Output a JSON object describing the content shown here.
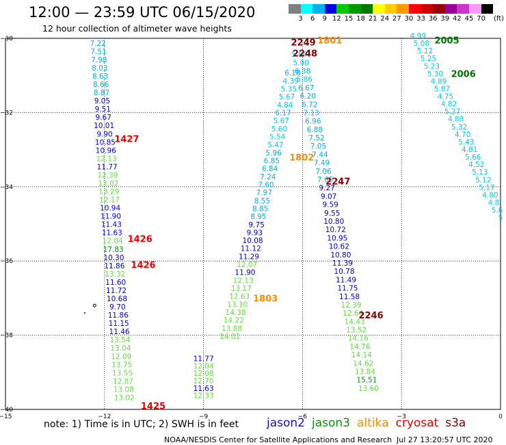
{
  "header": {
    "title": "12:00 — 23:59 UTC 06/15/2020",
    "subtitle": "12 hour collection of altimeter wave heights"
  },
  "colorbar": {
    "labels": [
      "3",
      "6",
      "9",
      "12",
      "15",
      "18",
      "21",
      "24",
      "27",
      "30",
      "33",
      "36",
      "39",
      "42",
      "45",
      "70"
    ],
    "colors": [
      "#7f7f7f",
      "#00ffff",
      "#00b0f0",
      "#0000e0",
      "#00cc00",
      "#009900",
      "#007700",
      "#ffff00",
      "#ffcc00",
      "#ff9900",
      "#ff0000",
      "#cc0000",
      "#990000",
      "#990099",
      "#cc33cc",
      "#ff99ff",
      "#000000"
    ],
    "unit": "(ft)"
  },
  "footer": {
    "note": "note:  1) Time is in UTC;  2) SWH is in feet",
    "credit": "NOAA/NESDIS Center for Satellite Applications and Research",
    "timestamp": "Jul 27 13:20:57 UTC 2020",
    "legend": [
      {
        "name": "jason2",
        "color": "#1010d0"
      },
      {
        "name": "jason3",
        "color": "#109010"
      },
      {
        "name": "altika",
        "color": "#ff8c00"
      },
      {
        "name": "cryosat",
        "color": "#ee0000"
      },
      {
        "name": "s3a",
        "color": "#8b0000"
      }
    ]
  },
  "chart_data": {
    "type": "scatter",
    "xlim": [
      -15,
      0
    ],
    "ylim": [
      -40,
      -30
    ],
    "x_ticks": [
      -15,
      -12,
      -9,
      -6,
      -3,
      0
    ],
    "y_ticks": [
      -30,
      -32,
      -34,
      -36,
      -38,
      -40
    ],
    "x_tick_labels": [
      "−15",
      "−12",
      "−9",
      "−6",
      "−3",
      "0"
    ],
    "y_tick_labels": [
      "−30",
      "−32",
      "−34",
      "−36",
      "−38",
      "−40"
    ],
    "grid": true,
    "tracks": [
      {
        "x0": -12.2,
        "y0": -30.2,
        "x1": -11.4,
        "y1": -39.75,
        "points": [
          {
            "v": "7.22",
            "c": "#00b0f0"
          },
          {
            "v": "7.51",
            "c": "#00b0f0"
          },
          {
            "v": "7.98",
            "c": "#00b0f0"
          },
          {
            "v": "8.03",
            "c": "#00b0f0"
          },
          {
            "v": "8.63",
            "c": "#00b0f0"
          },
          {
            "v": "8.66",
            "c": "#00b0f0"
          },
          {
            "v": "8.87",
            "c": "#00b0f0"
          },
          {
            "v": "9.05",
            "c": "#0000e0"
          },
          {
            "v": "9.51",
            "c": "#0000e0"
          },
          {
            "v": "9.67",
            "c": "#0000e0"
          },
          {
            "v": "10.01",
            "c": "#0000e0"
          },
          {
            "v": "9.90",
            "c": "#0000e0"
          },
          {
            "v": "10.85",
            "c": "#0000e0"
          },
          {
            "v": "10.96",
            "c": "#0000e0"
          },
          {
            "v": "12.13",
            "c": "#66dd44"
          },
          {
            "v": "11.77",
            "c": "#0000e0"
          },
          {
            "v": "12.39",
            "c": "#66dd44"
          },
          {
            "v": "13.02",
            "c": "#66dd44"
          },
          {
            "v": "13.29",
            "c": "#66dd44"
          },
          {
            "v": "12.17",
            "c": "#66dd44"
          },
          {
            "v": "10.94",
            "c": "#0000e0"
          },
          {
            "v": "11.90",
            "c": "#0000e0"
          },
          {
            "v": "11.43",
            "c": "#0000e0"
          },
          {
            "v": "11.63",
            "c": "#0000e0"
          },
          {
            "v": "12.04",
            "c": "#66dd44"
          },
          {
            "v": "17.83",
            "c": "#009900"
          },
          {
            "v": "10.30",
            "c": "#0000e0"
          },
          {
            "v": "11.86",
            "c": "#0000e0"
          },
          {
            "v": "13.32",
            "c": "#66dd44"
          },
          {
            "v": "11.60",
            "c": "#0000e0"
          },
          {
            "v": "11.72",
            "c": "#0000e0"
          },
          {
            "v": "10.68",
            "c": "#0000e0"
          },
          {
            "v": "9.70",
            "c": "#0000e0"
          },
          {
            "v": "11.86",
            "c": "#0000e0"
          },
          {
            "v": "11.15",
            "c": "#0000e0"
          },
          {
            "v": "11.46",
            "c": "#0000e0"
          },
          {
            "v": "13.54",
            "c": "#66dd44"
          },
          {
            "v": "13.04",
            "c": "#66dd44"
          },
          {
            "v": "12.09",
            "c": "#66dd44"
          },
          {
            "v": "13.75",
            "c": "#66dd44"
          },
          {
            "v": "13.55",
            "c": "#66dd44"
          },
          {
            "v": "12.87",
            "c": "#66dd44"
          },
          {
            "v": "13.08",
            "c": "#66dd44"
          },
          {
            "v": "13.02",
            "c": "#66dd44"
          }
        ]
      },
      {
        "x0": -6.3,
        "y0": -31.0,
        "x1": -8.2,
        "y1": -38.1,
        "points": [
          {
            "v": "6.18",
            "c": "#00b0f0"
          },
          {
            "v": "4.39",
            "c": "#00ccee"
          },
          {
            "v": "5.35",
            "c": "#00ccee"
          },
          {
            "v": "5.67",
            "c": "#00ccee"
          },
          {
            "v": "4.84",
            "c": "#00ccee"
          },
          {
            "v": "6.17",
            "c": "#00b0f0"
          },
          {
            "v": "5.67",
            "c": "#00ccee"
          },
          {
            "v": "5.60",
            "c": "#00ccee"
          },
          {
            "v": "5.54",
            "c": "#00ccee"
          },
          {
            "v": "5.47",
            "c": "#00ccee"
          },
          {
            "v": "5.96",
            "c": "#00b0f0"
          },
          {
            "v": "6.85",
            "c": "#00b0f0"
          },
          {
            "v": "6.84",
            "c": "#00b0f0"
          },
          {
            "v": "7.24",
            "c": "#00b0f0"
          },
          {
            "v": "7.60",
            "c": "#00b0f0"
          },
          {
            "v": "7.97",
            "c": "#00b0f0"
          },
          {
            "v": "8.55",
            "c": "#00b0f0"
          },
          {
            "v": "8.85",
            "c": "#00b0f0"
          },
          {
            "v": "8.95",
            "c": "#00b0f0"
          },
          {
            "v": "9.75",
            "c": "#0000e0"
          },
          {
            "v": "9.93",
            "c": "#0000e0"
          },
          {
            "v": "10.08",
            "c": "#0000e0"
          },
          {
            "v": "11.12",
            "c": "#0000e0"
          },
          {
            "v": "11.29",
            "c": "#0000e0"
          },
          {
            "v": "12.07",
            "c": "#66dd44"
          },
          {
            "v": "11.90",
            "c": "#0000e0"
          },
          {
            "v": "12.13",
            "c": "#66dd44"
          },
          {
            "v": "13.17",
            "c": "#66dd44"
          },
          {
            "v": "12.63",
            "c": "#66dd44"
          },
          {
            "v": "13.10",
            "c": "#66dd44"
          },
          {
            "v": "14.38",
            "c": "#66dd44"
          },
          {
            "v": "14.22",
            "c": "#66dd44"
          },
          {
            "v": "13.88",
            "c": "#66dd44"
          },
          {
            "v": "14.01",
            "c": "#66dd44"
          }
        ]
      },
      {
        "x0": -6.1,
        "y0": -30.5,
        "x1": -4.0,
        "y1": -39.5,
        "points": [
          {
            "v": "5.84",
            "c": "#00ccee"
          },
          {
            "v": "5.90",
            "c": "#00ccee"
          },
          {
            "v": "6.38",
            "c": "#00b0f0"
          },
          {
            "v": "5.86",
            "c": "#00ccee"
          },
          {
            "v": "6.67",
            "c": "#00b0f0"
          },
          {
            "v": "6.20",
            "c": "#00b0f0"
          },
          {
            "v": "6.72",
            "c": "#00b0f0"
          },
          {
            "v": "7.13",
            "c": "#00b0f0"
          },
          {
            "v": "6.96",
            "c": "#00b0f0"
          },
          {
            "v": "6.88",
            "c": "#00b0f0"
          },
          {
            "v": "7.52",
            "c": "#00b0f0"
          },
          {
            "v": "7.05",
            "c": "#00b0f0"
          },
          {
            "v": "7.44",
            "c": "#00b0f0"
          },
          {
            "v": "7.49",
            "c": "#00b0f0"
          },
          {
            "v": "7.06",
            "c": "#00b0f0"
          },
          {
            "v": "7.65",
            "c": "#00b0f0"
          },
          {
            "v": "9.27",
            "c": "#0000e0"
          },
          {
            "v": "9.07",
            "c": "#0000e0"
          },
          {
            "v": "9.59",
            "c": "#0000e0"
          },
          {
            "v": "9.55",
            "c": "#0000e0"
          },
          {
            "v": "10.80",
            "c": "#0000e0"
          },
          {
            "v": "10.72",
            "c": "#0000e0"
          },
          {
            "v": "10.95",
            "c": "#0000e0"
          },
          {
            "v": "10.62",
            "c": "#0000e0"
          },
          {
            "v": "10.80",
            "c": "#0000e0"
          },
          {
            "v": "11.39",
            "c": "#0000e0"
          },
          {
            "v": "10.78",
            "c": "#0000e0"
          },
          {
            "v": "11.49",
            "c": "#0000e0"
          },
          {
            "v": "11.75",
            "c": "#0000e0"
          },
          {
            "v": "11.58",
            "c": "#0000e0"
          },
          {
            "v": "12.39",
            "c": "#66dd44"
          },
          {
            "v": "12.64",
            "c": "#66dd44"
          },
          {
            "v": "14.43",
            "c": "#66dd44"
          },
          {
            "v": "13.52",
            "c": "#66dd44"
          },
          {
            "v": "14.16",
            "c": "#66dd44"
          },
          {
            "v": "14.76",
            "c": "#66dd44"
          },
          {
            "v": "14.14",
            "c": "#66dd44"
          },
          {
            "v": "14.62",
            "c": "#66dd44"
          },
          {
            "v": "13.84",
            "c": "#66dd44"
          },
          {
            "v": "15.51",
            "c": "#009900"
          },
          {
            "v": "13.60",
            "c": "#66dd44"
          }
        ]
      },
      {
        "x0": -2.5,
        "y0": -30.0,
        "x1": 0.0,
        "y1": -34.9,
        "points": [
          {
            "v": "4.99",
            "c": "#00ccee"
          },
          {
            "v": "5.08",
            "c": "#00ccee"
          },
          {
            "v": "5.12",
            "c": "#00ccee"
          },
          {
            "v": "5.25",
            "c": "#00ccee"
          },
          {
            "v": "5.23",
            "c": "#00ccee"
          },
          {
            "v": "5.30",
            "c": "#00ccee"
          },
          {
            "v": "4.89",
            "c": "#00ccee"
          },
          {
            "v": "5.87",
            "c": "#00ccee"
          },
          {
            "v": "4.75",
            "c": "#00ccee"
          },
          {
            "v": "4.82",
            "c": "#00ccee"
          },
          {
            "v": "5.27",
            "c": "#00ccee"
          },
          {
            "v": "4.88",
            "c": "#00ccee"
          },
          {
            "v": "5.32",
            "c": "#00ccee"
          },
          {
            "v": "4.70",
            "c": "#00ccee"
          },
          {
            "v": "5.43",
            "c": "#00ccee"
          },
          {
            "v": "4.81",
            "c": "#00ccee"
          },
          {
            "v": "5.66",
            "c": "#00ccee"
          },
          {
            "v": "4.52",
            "c": "#00ccee"
          },
          {
            "v": "5.13",
            "c": "#00ccee"
          },
          {
            "v": "5.12",
            "c": "#00ccee"
          },
          {
            "v": "5.17",
            "c": "#00ccee"
          },
          {
            "v": "4.80",
            "c": "#00ccee"
          },
          {
            "v": "4.8",
            "c": "#00ccee"
          },
          {
            "v": "5.6",
            "c": "#00ccee"
          },
          {
            "v": "5",
            "c": "#00ccee"
          }
        ]
      },
      {
        "x0": -9.0,
        "y0": -38.7,
        "x1": -9.0,
        "y1": -39.7,
        "points": [
          {
            "v": "11.77",
            "c": "#0000e0"
          },
          {
            "v": "12.04",
            "c": "#66dd44"
          },
          {
            "v": "12.08",
            "c": "#66dd44"
          },
          {
            "v": "12.70",
            "c": "#66dd44"
          },
          {
            "v": "11.63",
            "c": "#0000e0"
          },
          {
            "v": "12.33",
            "c": "#66dd44"
          }
        ]
      }
    ],
    "time_labels": [
      {
        "t": "1427",
        "x": -11.7,
        "y": -32.7,
        "c": "#ee0000"
      },
      {
        "t": "1426",
        "x": -11.3,
        "y": -35.4,
        "c": "#ee0000"
      },
      {
        "t": "1426",
        "x": -11.2,
        "y": -36.1,
        "c": "#ee0000"
      },
      {
        "t": "1425",
        "x": -10.9,
        "y": -39.9,
        "c": "#ee0000"
      },
      {
        "t": "2249",
        "x": -6.35,
        "y": -30.1,
        "c": "#8b0000"
      },
      {
        "t": "2248",
        "x": -6.3,
        "y": -30.4,
        "c": "#8b0000"
      },
      {
        "t": "1801",
        "x": -5.55,
        "y": -30.05,
        "c": "#ff8c00"
      },
      {
        "t": "1802",
        "x": -6.4,
        "y": -33.2,
        "c": "#ff8c00"
      },
      {
        "t": "1803",
        "x": -7.5,
        "y": -37.0,
        "c": "#ff8c00"
      },
      {
        "t": "2247",
        "x": -5.3,
        "y": -33.85,
        "c": "#8b0000"
      },
      {
        "t": "2246",
        "x": -4.3,
        "y": -37.45,
        "c": "#8b0000"
      },
      {
        "t": "2005",
        "x": -2.0,
        "y": -30.05,
        "c": "#007700"
      },
      {
        "t": "2006",
        "x": -1.5,
        "y": -30.95,
        "c": "#007700"
      }
    ]
  }
}
